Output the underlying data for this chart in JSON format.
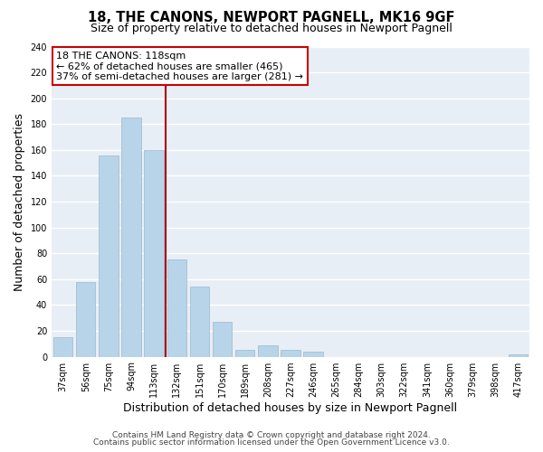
{
  "title": "18, THE CANONS, NEWPORT PAGNELL, MK16 9GF",
  "subtitle": "Size of property relative to detached houses in Newport Pagnell",
  "xlabel": "Distribution of detached houses by size in Newport Pagnell",
  "ylabel": "Number of detached properties",
  "bar_labels": [
    "37sqm",
    "56sqm",
    "75sqm",
    "94sqm",
    "113sqm",
    "132sqm",
    "151sqm",
    "170sqm",
    "189sqm",
    "208sqm",
    "227sqm",
    "246sqm",
    "265sqm",
    "284sqm",
    "303sqm",
    "322sqm",
    "341sqm",
    "360sqm",
    "379sqm",
    "398sqm",
    "417sqm"
  ],
  "bar_values": [
    15,
    58,
    156,
    185,
    160,
    75,
    54,
    27,
    5,
    9,
    5,
    4,
    0,
    0,
    0,
    0,
    0,
    0,
    0,
    0,
    2
  ],
  "bar_color": "#b8d4e8",
  "bar_edge_color": "#9ab8d0",
  "redline_index": 4,
  "annotation_title": "18 THE CANONS: 118sqm",
  "annotation_line1": "← 62% of detached houses are smaller (465)",
  "annotation_line2": "37% of semi-detached houses are larger (281) →",
  "annotation_box_facecolor": "#ffffff",
  "annotation_box_edgecolor": "#cc0000",
  "redline_color": "#aa0000",
  "bg_color": "#ffffff",
  "plot_bg_color": "#e8eef5",
  "grid_color": "#ffffff",
  "ylim": [
    0,
    240
  ],
  "yticks": [
    0,
    20,
    40,
    60,
    80,
    100,
    120,
    140,
    160,
    180,
    200,
    220,
    240
  ],
  "title_fontsize": 10.5,
  "subtitle_fontsize": 9,
  "tick_fontsize": 7,
  "label_fontsize": 9,
  "annot_fontsize": 8,
  "footnote1": "Contains HM Land Registry data © Crown copyright and database right 2024.",
  "footnote2": "Contains public sector information licensed under the Open Government Licence v3.0.",
  "footnote_fontsize": 6.5
}
